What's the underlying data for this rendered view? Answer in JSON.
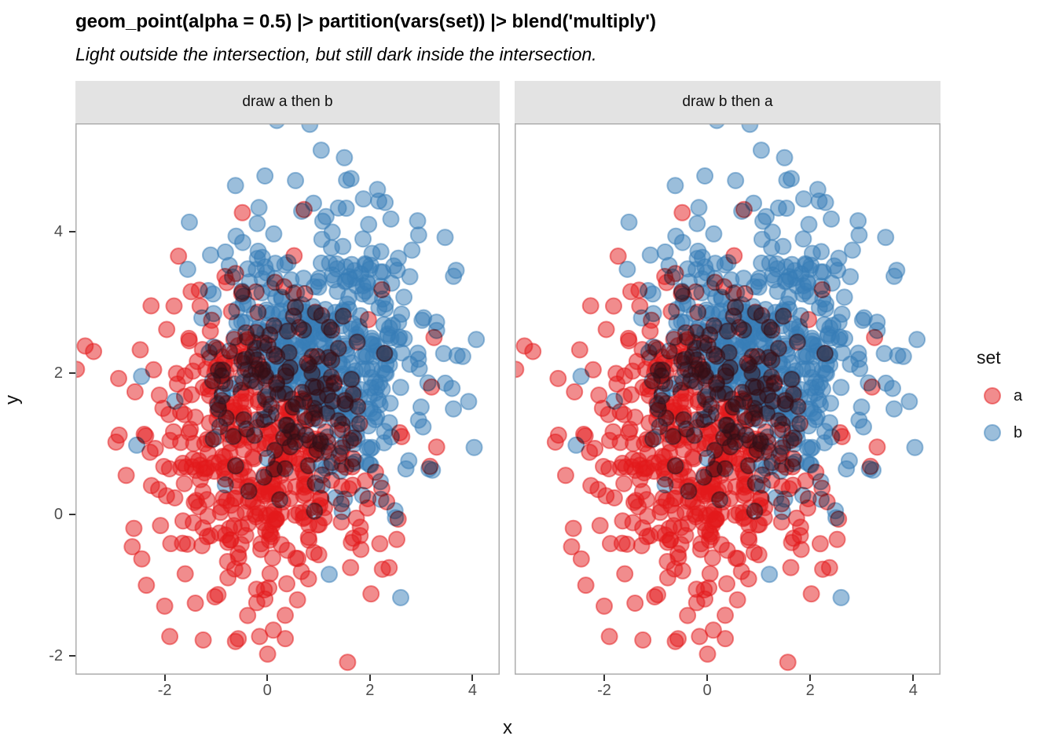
{
  "title": "geom_point(alpha = 0.5) |> partition(vars(set)) |> blend('multiply')",
  "subtitle": "Light outside the intersection, but still dark inside the intersection.",
  "chart_data": {
    "type": "scatter",
    "title": "geom_point(alpha = 0.5) |> partition(vars(set)) |> blend('multiply')",
    "subtitle": "Light outside the intersection, but still dark inside the intersection.",
    "xlabel": "x",
    "ylabel": "y",
    "xlim": [
      -3.74,
      4.53
    ],
    "ylim": [
      -2.27,
      5.53
    ],
    "x_ticks": [
      -2,
      0,
      2,
      4
    ],
    "y_ticks": [
      -2,
      0,
      2,
      4
    ],
    "grid": "off",
    "blend_mode": "multiply",
    "point_alpha": 0.5,
    "faceting": {
      "variable": "draw order",
      "facets": [
        {
          "label": "draw a then b",
          "draw_order": [
            "a",
            "b"
          ]
        },
        {
          "label": "draw b then a",
          "draw_order": [
            "b",
            "a"
          ]
        }
      ]
    },
    "series": [
      {
        "name": "a",
        "color": "#E41A1C",
        "n": 500,
        "mean": [
          -0.05,
          0.95
        ],
        "sd": [
          1.05,
          1.05
        ],
        "seed": 20,
        "extra_points": [
          [
            -3.55,
            2.38
          ],
          [
            -3.72,
            2.05
          ],
          [
            -2.95,
            1.02
          ],
          [
            -2.75,
            0.55
          ],
          [
            -2.6,
            -0.2
          ],
          [
            -2.0,
            -1.3
          ],
          [
            -1.9,
            -1.73
          ],
          [
            -1.25,
            -1.78
          ],
          [
            -0.62,
            -1.8
          ],
          [
            -0.15,
            -1.73
          ],
          [
            0.35,
            -1.76
          ],
          [
            0.15,
            3.28
          ],
          [
            -0.5,
            3.12
          ],
          [
            2.55,
            -0.07
          ],
          [
            3.2,
            1.8
          ],
          [
            3.3,
            0.95
          ],
          [
            3.25,
            2.5
          ]
        ]
      },
      {
        "name": "b",
        "color": "#377EB8",
        "n": 500,
        "mean": [
          1.05,
          2.3
        ],
        "sd": [
          1.0,
          1.0
        ],
        "seed": 7,
        "extra_points": [
          [
            1.05,
            5.15
          ],
          [
            0.55,
            4.72
          ],
          [
            0.9,
            4.4
          ],
          [
            2.6,
            -1.18
          ],
          [
            2.5,
            -0.05
          ],
          [
            3.68,
            3.45
          ],
          [
            3.6,
            1.78
          ],
          [
            3.3,
            2.6
          ],
          [
            -2.45,
            1.95
          ],
          [
            -1.8,
            1.6
          ],
          [
            2.95,
            3.95
          ]
        ]
      }
    ],
    "legend": {
      "title": "set",
      "position": "right",
      "entries": [
        {
          "label": "a",
          "series": "a"
        },
        {
          "label": "b",
          "series": "b"
        }
      ]
    }
  },
  "colors": {
    "strip_bg": "#E3E3E3",
    "panel_border": "#ADADAD",
    "tick": "#333333",
    "tick_label": "#4D4D4D"
  }
}
